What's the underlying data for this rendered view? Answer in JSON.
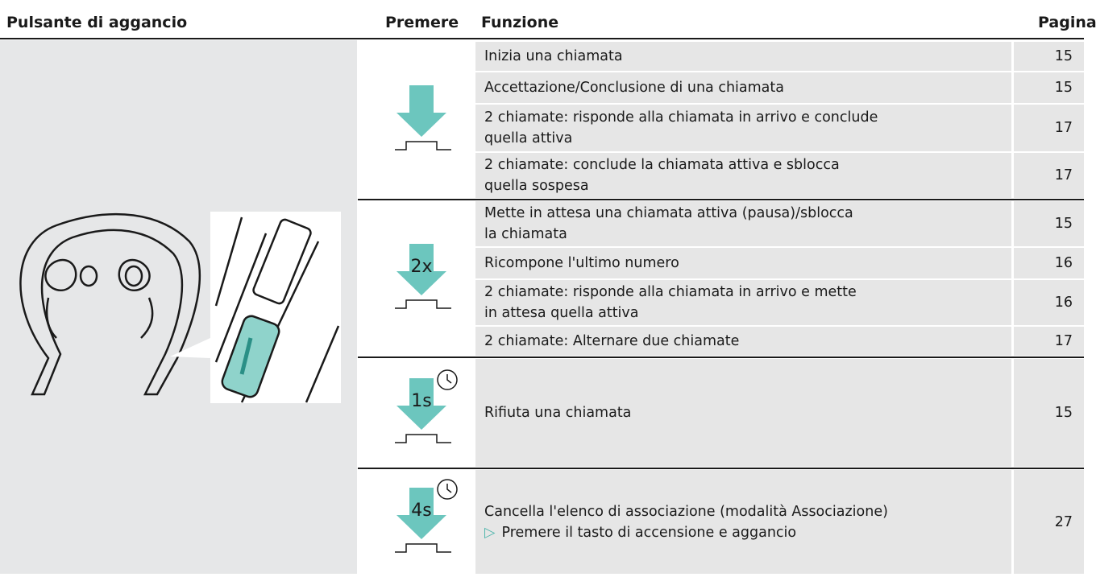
{
  "header": {
    "button": "Pulsante di aggancio",
    "press": "Premere",
    "function": "Funzione",
    "page": "Pagina"
  },
  "groups": [
    {
      "rows": [
        {
          "function": [
            "Inizia una chiamata"
          ],
          "page": 15
        },
        {
          "function": [
            "Accettazione/Conclusione di una chiamata"
          ],
          "page": 15
        },
        {
          "function": [
            "2 chiamate: risponde alla chiamata in arrivo e conclude",
            "quella attiva"
          ],
          "page": 17
        },
        {
          "function": [
            "2 chiamate: conclude la chiamata attiva e sblocca",
            "quella sospesa"
          ],
          "page": 17
        }
      ]
    },
    {
      "press_label": "2x",
      "rows": [
        {
          "function": [
            "Mette in attesa una chiamata attiva (pausa)/sblocca",
            "la chiamata"
          ],
          "page": 15
        },
        {
          "function": [
            "Ricompone l'ultimo numero"
          ],
          "page": 16
        },
        {
          "function": [
            "2 chiamate: risponde alla chiamata in arrivo e mette",
            "in attesa quella attiva"
          ],
          "page": 16
        },
        {
          "function": [
            "2 chiamate: Alternare due chiamate"
          ],
          "page": 17
        }
      ]
    },
    {
      "press_label": "1s",
      "rows": [
        {
          "function": [
            "Rifiuta una chiamata"
          ],
          "page": 15
        }
      ]
    },
    {
      "press_label": "4s",
      "rows": [
        {
          "function": [
            "Cancella l'elenco di associazione (modalità Associazione)"
          ],
          "note": "Premere il tasto di accensione e aggancio",
          "page": 27
        }
      ]
    }
  ]
}
